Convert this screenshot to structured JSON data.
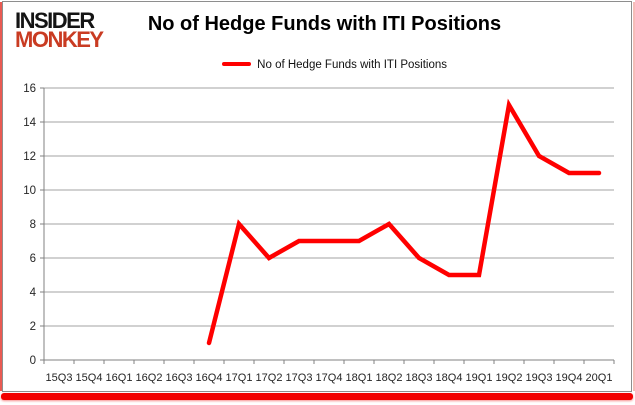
{
  "brand": {
    "name": "Insider Monkey",
    "line1": "INSIDER",
    "line2": "MONKEY"
  },
  "title": "No of Hedge Funds with ITI Positions",
  "legend": {
    "label": "No of Hedge Funds with ITI Positions"
  },
  "colors": {
    "series_red": "#ff0000",
    "brand_red": "#c93b22",
    "accent_bar_red": "#f20000",
    "gridline_gray": "#a3a3a3",
    "axis_gray": "#808080"
  },
  "chart_data": {
    "type": "line",
    "title": "No of Hedge Funds with ITI Positions",
    "categories": [
      "15Q3",
      "15Q4",
      "16Q1",
      "16Q2",
      "16Q3",
      "16Q4",
      "17Q1",
      "17Q2",
      "17Q3",
      "17Q4",
      "18Q1",
      "18Q2",
      "18Q3",
      "18Q4",
      "19Q1",
      "19Q2",
      "19Q3",
      "19Q4",
      "20Q1"
    ],
    "series": [
      {
        "name": "No of Hedge Funds with ITI Positions",
        "color": "#ff0000",
        "values": [
          null,
          null,
          null,
          null,
          null,
          1,
          8,
          6,
          7,
          7,
          7,
          8,
          6,
          5,
          5,
          15,
          12,
          11,
          11
        ]
      }
    ],
    "xlabel": "",
    "ylabel": "",
    "ylim": [
      0,
      16
    ],
    "yticks": [
      0,
      2,
      4,
      6,
      8,
      10,
      12,
      14,
      16
    ],
    "grid": true,
    "legend_position": "top-center"
  }
}
